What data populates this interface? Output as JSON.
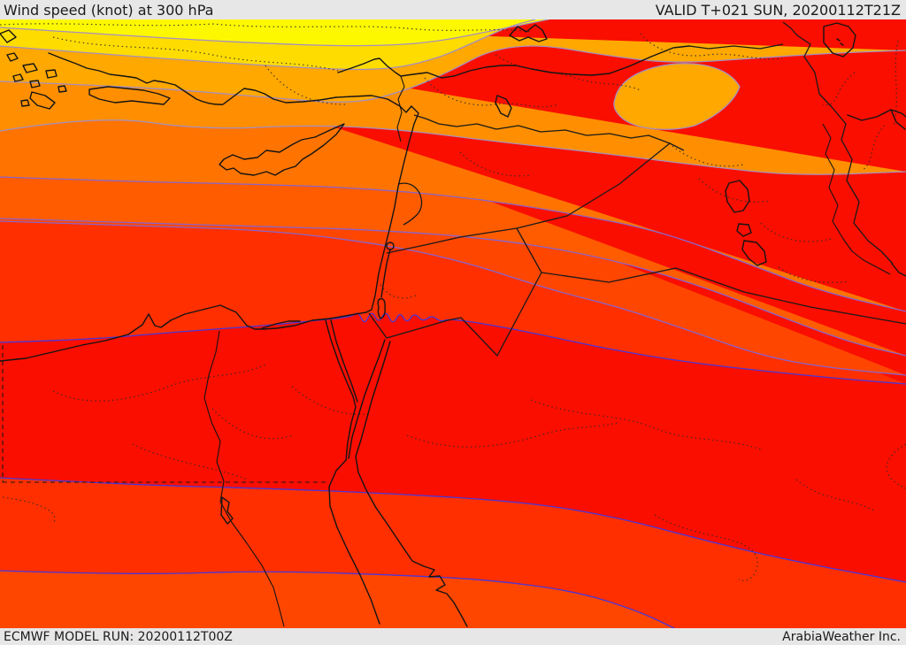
{
  "header": {
    "title": "Wind speed (knot) at 300 hPa",
    "valid": "VALID T+021 SUN, 20200112T21Z"
  },
  "footer": {
    "model_run": "ECMWF MODEL RUN: 20200112T00Z",
    "brand": "ArabiaWeather Inc."
  },
  "map": {
    "parameter": "Wind speed",
    "units": "knot",
    "level": "300 hPa",
    "model": "ECMWF",
    "band_colors": {
      "L1": "#fdf800",
      "L2": "#ffdc00",
      "L3": "#ffa800",
      "L4": "#ff8f00",
      "L5": "#ff7400",
      "L6": "#ff5c00",
      "L7": "#ff4600",
      "L8": "#ff2f00",
      "L9": "#fa0e00"
    },
    "contour_warm": "#a58fc0",
    "contour_mid": "#8a63cc",
    "contour_cool": "#4a35d8",
    "coast_color": "#141414",
    "border_color": "#1a1a1a",
    "admin_color": "#2a2a2a",
    "chrome_bg": "#e7e7e7",
    "text_color": "#1b1b1b"
  }
}
